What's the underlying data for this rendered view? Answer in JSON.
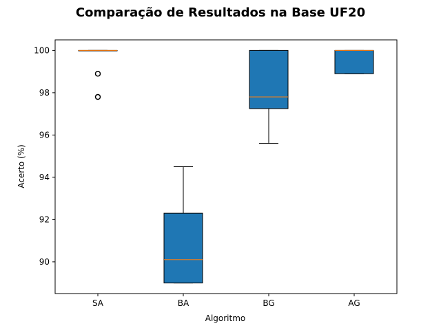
{
  "chart_data": {
    "type": "boxplot",
    "title": "Comparação de Resultados na Base UF20",
    "xlabel": "Algoritmo",
    "ylabel": "Acerto (%)",
    "ylim": [
      88.5,
      100.5
    ],
    "yticks": [
      "90",
      "92",
      "94",
      "96",
      "98",
      "100"
    ],
    "categories": [
      "SA",
      "BA",
      "BG",
      "AG"
    ],
    "boxes": [
      {
        "category": "SA",
        "whisker_low": 100,
        "q1": 100,
        "median": 100,
        "q3": 100,
        "whisker_high": 100,
        "outliers": [
          98.9,
          97.8
        ]
      },
      {
        "category": "BA",
        "whisker_low": 89.0,
        "q1": 89.0,
        "median": 90.1,
        "q3": 92.3,
        "whisker_high": 94.5,
        "outliers": []
      },
      {
        "category": "BG",
        "whisker_low": 95.6,
        "q1": 97.25,
        "median": 97.8,
        "q3": 100,
        "whisker_high": 100,
        "outliers": []
      },
      {
        "category": "AG",
        "whisker_low": 98.9,
        "q1": 98.9,
        "median": 100,
        "q3": 100,
        "whisker_high": 100,
        "outliers": []
      }
    ],
    "colors": {
      "box_fill": "#1f77b4",
      "median": "#ff7f0e",
      "edge": "#000000"
    },
    "grid": false,
    "legend": "none"
  }
}
